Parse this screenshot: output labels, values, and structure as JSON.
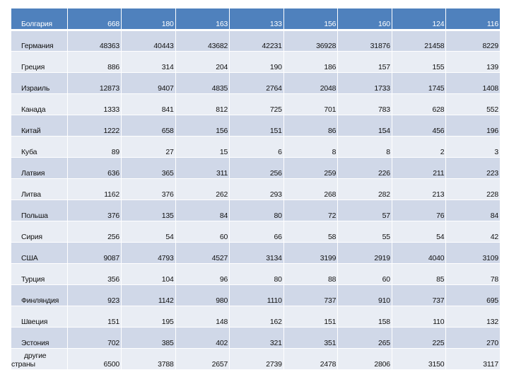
{
  "table": {
    "rows": [
      {
        "name": "Болгария",
        "values": [
          "668",
          "180",
          "163",
          "133",
          "156",
          "160",
          "124",
          "116"
        ]
      },
      {
        "name": "Германия",
        "values": [
          "48363",
          "40443",
          "43682",
          "42231",
          "36928",
          "31876",
          "21458",
          "8229"
        ]
      },
      {
        "name": "Греция",
        "values": [
          "886",
          "314",
          "204",
          "190",
          "186",
          "157",
          "155",
          "139"
        ]
      },
      {
        "name": "Израиль",
        "values": [
          "12873",
          "9407",
          "4835",
          "2764",
          "2048",
          "1733",
          "1745",
          "1408"
        ]
      },
      {
        "name": "Канада",
        "values": [
          "1333",
          "841",
          "812",
          "725",
          "701",
          "783",
          "628",
          "552"
        ]
      },
      {
        "name": "Китай",
        "values": [
          "1222",
          "658",
          "156",
          "151",
          "86",
          "154",
          "456",
          "196"
        ]
      },
      {
        "name": "Куба",
        "values": [
          "89",
          "27",
          "15",
          "6",
          "8",
          "8",
          "2",
          "3"
        ]
      },
      {
        "name": "Латвия",
        "values": [
          "636",
          "365",
          "311",
          "256",
          "259",
          "226",
          "211",
          "223"
        ]
      },
      {
        "name": "Литва",
        "values": [
          "1162",
          "376",
          "262",
          "293",
          "268",
          "282",
          "213",
          "228"
        ]
      },
      {
        "name": "Польша",
        "values": [
          "376",
          "135",
          "84",
          "80",
          "72",
          "57",
          "76",
          "84"
        ]
      },
      {
        "name": "Сирия",
        "values": [
          "256",
          "54",
          "60",
          "66",
          "58",
          "55",
          "54",
          "42"
        ]
      },
      {
        "name": "США",
        "values": [
          "9087",
          "4793",
          "4527",
          "3134",
          "3199",
          "2919",
          "4040",
          "3109"
        ]
      },
      {
        "name": "Турция",
        "values": [
          "356",
          "104",
          "96",
          "80",
          "88",
          "60",
          "85",
          "78"
        ]
      },
      {
        "name": "Финляндия",
        "values": [
          "923",
          "1142",
          "980",
          "1110",
          "737",
          "910",
          "737",
          "695"
        ]
      },
      {
        "name": "Швеция",
        "values": [
          "151",
          "195",
          "148",
          "162",
          "151",
          "158",
          "110",
          "132"
        ]
      },
      {
        "name": "Эстония",
        "values": [
          "702",
          "385",
          "402",
          "321",
          "351",
          "265",
          "225",
          "270"
        ]
      },
      {
        "name": "другие страны",
        "name_lines": [
          "другие",
          "страны"
        ],
        "values": [
          "6500",
          "3788",
          "2657",
          "2739",
          "2478",
          "2806",
          "3150",
          "3117"
        ]
      }
    ]
  },
  "colors": {
    "header": "#4f81bd",
    "row_dark": "#d0d8e8",
    "row_light": "#e9edf4"
  }
}
